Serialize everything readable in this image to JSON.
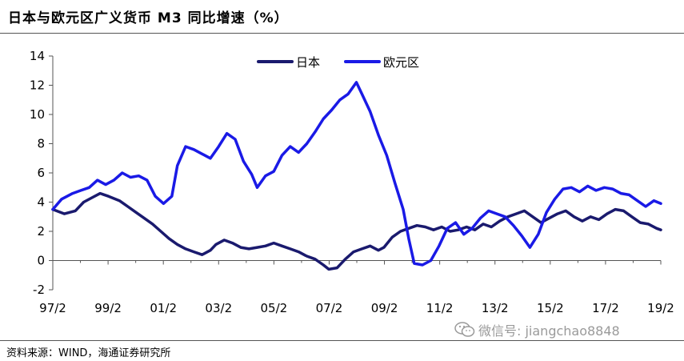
{
  "title": "日本与欧元区广义货币 M3 同比增速（%）",
  "source": "资料来源：WIND，海通证券研究所",
  "watermark": {
    "icon": "wechat-icon",
    "text": "微信号: jiangchao8848"
  },
  "chart_data": {
    "type": "line",
    "title": "日本与欧元区广义货币 M3 同比增速（%）",
    "xlabel": "",
    "ylabel": "",
    "x_ticks": [
      "97/2",
      "99/2",
      "01/2",
      "03/2",
      "05/2",
      "07/2",
      "09/2",
      "11/2",
      "13/2",
      "15/2",
      "17/2",
      "19/2"
    ],
    "y_ticks": [
      -2,
      0,
      2,
      4,
      6,
      8,
      10,
      12,
      14
    ],
    "xlim": [
      1997.08,
      2019.15
    ],
    "ylim": [
      -2,
      14
    ],
    "grid": false,
    "legend": "top-center",
    "series": [
      {
        "name": "日本",
        "color": "#1a1a6e",
        "points": [
          [
            1997.08,
            3.5
          ],
          [
            1997.5,
            3.2
          ],
          [
            1997.9,
            3.4
          ],
          [
            1998.2,
            4.0
          ],
          [
            1998.5,
            4.3
          ],
          [
            1998.8,
            4.6
          ],
          [
            1999.1,
            4.4
          ],
          [
            1999.5,
            4.1
          ],
          [
            1999.8,
            3.7
          ],
          [
            2000.1,
            3.3
          ],
          [
            2000.4,
            2.9
          ],
          [
            2000.7,
            2.5
          ],
          [
            2001.0,
            2.0
          ],
          [
            2001.3,
            1.5
          ],
          [
            2001.6,
            1.1
          ],
          [
            2001.9,
            0.8
          ],
          [
            2002.2,
            0.6
          ],
          [
            2002.5,
            0.4
          ],
          [
            2002.8,
            0.7
          ],
          [
            2003.0,
            1.1
          ],
          [
            2003.3,
            1.4
          ],
          [
            2003.6,
            1.2
          ],
          [
            2003.9,
            0.9
          ],
          [
            2004.2,
            0.8
          ],
          [
            2004.5,
            0.9
          ],
          [
            2004.8,
            1.0
          ],
          [
            2005.1,
            1.2
          ],
          [
            2005.4,
            1.0
          ],
          [
            2005.7,
            0.8
          ],
          [
            2006.0,
            0.6
          ],
          [
            2006.3,
            0.3
          ],
          [
            2006.6,
            0.1
          ],
          [
            2006.9,
            -0.3
          ],
          [
            2007.1,
            -0.6
          ],
          [
            2007.4,
            -0.5
          ],
          [
            2007.7,
            0.1
          ],
          [
            2008.0,
            0.6
          ],
          [
            2008.3,
            0.8
          ],
          [
            2008.6,
            1.0
          ],
          [
            2008.9,
            0.7
          ],
          [
            2009.1,
            0.9
          ],
          [
            2009.4,
            1.6
          ],
          [
            2009.7,
            2.0
          ],
          [
            2010.0,
            2.2
          ],
          [
            2010.3,
            2.4
          ],
          [
            2010.6,
            2.3
          ],
          [
            2010.9,
            2.1
          ],
          [
            2011.2,
            2.3
          ],
          [
            2011.5,
            2.0
          ],
          [
            2011.8,
            2.1
          ],
          [
            2012.1,
            2.3
          ],
          [
            2012.4,
            2.1
          ],
          [
            2012.7,
            2.5
          ],
          [
            2013.0,
            2.3
          ],
          [
            2013.3,
            2.7
          ],
          [
            2013.6,
            3.0
          ],
          [
            2013.9,
            3.2
          ],
          [
            2014.2,
            3.4
          ],
          [
            2014.5,
            3.0
          ],
          [
            2014.8,
            2.6
          ],
          [
            2015.1,
            2.9
          ],
          [
            2015.4,
            3.2
          ],
          [
            2015.7,
            3.4
          ],
          [
            2016.0,
            3.0
          ],
          [
            2016.3,
            2.7
          ],
          [
            2016.6,
            3.0
          ],
          [
            2016.9,
            2.8
          ],
          [
            2017.2,
            3.2
          ],
          [
            2017.5,
            3.5
          ],
          [
            2017.8,
            3.4
          ],
          [
            2018.1,
            3.0
          ],
          [
            2018.4,
            2.6
          ],
          [
            2018.7,
            2.5
          ],
          [
            2019.0,
            2.2
          ],
          [
            2019.15,
            2.1
          ]
        ]
      },
      {
        "name": "欧元区",
        "color": "#1a1ae6",
        "points": [
          [
            1997.08,
            3.5
          ],
          [
            1997.4,
            4.2
          ],
          [
            1997.8,
            4.6
          ],
          [
            1998.1,
            4.8
          ],
          [
            1998.4,
            5.0
          ],
          [
            1998.7,
            5.5
          ],
          [
            1999.0,
            5.2
          ],
          [
            1999.3,
            5.5
          ],
          [
            1999.6,
            6.0
          ],
          [
            1999.9,
            5.7
          ],
          [
            2000.2,
            5.8
          ],
          [
            2000.5,
            5.5
          ],
          [
            2000.8,
            4.4
          ],
          [
            2001.1,
            3.9
          ],
          [
            2001.4,
            4.4
          ],
          [
            2001.6,
            6.5
          ],
          [
            2001.9,
            7.8
          ],
          [
            2002.2,
            7.6
          ],
          [
            2002.5,
            7.3
          ],
          [
            2002.8,
            7.0
          ],
          [
            2003.1,
            7.8
          ],
          [
            2003.4,
            8.7
          ],
          [
            2003.7,
            8.3
          ],
          [
            2004.0,
            6.8
          ],
          [
            2004.3,
            5.9
          ],
          [
            2004.5,
            5.0
          ],
          [
            2004.8,
            5.8
          ],
          [
            2005.1,
            6.1
          ],
          [
            2005.4,
            7.2
          ],
          [
            2005.7,
            7.8
          ],
          [
            2006.0,
            7.4
          ],
          [
            2006.3,
            8.0
          ],
          [
            2006.6,
            8.8
          ],
          [
            2006.9,
            9.7
          ],
          [
            2007.2,
            10.3
          ],
          [
            2007.5,
            11.0
          ],
          [
            2007.8,
            11.4
          ],
          [
            2008.1,
            12.2
          ],
          [
            2008.3,
            11.4
          ],
          [
            2008.6,
            10.2
          ],
          [
            2008.9,
            8.6
          ],
          [
            2009.2,
            7.2
          ],
          [
            2009.5,
            5.3
          ],
          [
            2009.8,
            3.5
          ],
          [
            2010.0,
            1.5
          ],
          [
            2010.2,
            -0.2
          ],
          [
            2010.5,
            -0.3
          ],
          [
            2010.8,
            0.0
          ],
          [
            2011.1,
            1.0
          ],
          [
            2011.4,
            2.2
          ],
          [
            2011.7,
            2.6
          ],
          [
            2012.0,
            1.8
          ],
          [
            2012.3,
            2.2
          ],
          [
            2012.6,
            2.9
          ],
          [
            2012.9,
            3.4
          ],
          [
            2013.2,
            3.2
          ],
          [
            2013.5,
            3.0
          ],
          [
            2013.8,
            2.4
          ],
          [
            2014.1,
            1.7
          ],
          [
            2014.4,
            0.9
          ],
          [
            2014.7,
            1.8
          ],
          [
            2015.0,
            3.3
          ],
          [
            2015.3,
            4.2
          ],
          [
            2015.6,
            4.9
          ],
          [
            2015.9,
            5.0
          ],
          [
            2016.2,
            4.7
          ],
          [
            2016.5,
            5.1
          ],
          [
            2016.8,
            4.8
          ],
          [
            2017.1,
            5.0
          ],
          [
            2017.4,
            4.9
          ],
          [
            2017.7,
            4.6
          ],
          [
            2018.0,
            4.5
          ],
          [
            2018.3,
            4.1
          ],
          [
            2018.6,
            3.7
          ],
          [
            2018.9,
            4.1
          ],
          [
            2019.15,
            3.9
          ]
        ]
      }
    ]
  }
}
